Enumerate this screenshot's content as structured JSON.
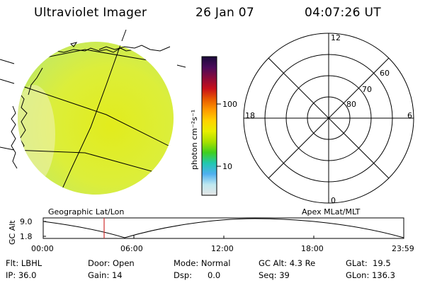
{
  "header": {
    "instrument": "Ultraviolet Imager",
    "date": "26 Jan 07",
    "time": "04:07:26 UT"
  },
  "colorbar": {
    "unit_label": "photon cm⁻²s⁻¹",
    "ticks": [
      "100",
      "10"
    ],
    "colors": [
      "#1a0a3a",
      "#4a0a5a",
      "#8a0a3a",
      "#c8101a",
      "#e85a00",
      "#ff9a00",
      "#ffd200",
      "#e8ee00",
      "#a8e000",
      "#3fcf1f",
      "#22c8b0",
      "#4fb0f0",
      "#bfe8f0",
      "#e6e6e6"
    ]
  },
  "earth_map": {
    "caption": "Geographic Lat/Lon",
    "image_fill_color": "#d7ee2a",
    "edge_color": "#98d85a"
  },
  "polar_plot": {
    "caption": "Apex  MLat/MLT",
    "mlt_labels": [
      "12",
      "6",
      "0",
      "18"
    ],
    "mlat_labels": [
      "60",
      "70",
      "80"
    ]
  },
  "altitude_plot": {
    "ylabel": "GC Alt",
    "yticks": [
      "9.0",
      "1.8"
    ],
    "xticks": [
      "00:00",
      "06:00",
      "12:00",
      "18:00",
      "23:59"
    ],
    "marker_color": "#d03030"
  },
  "footer": {
    "flt": "Flt: LBHL",
    "ip": "IP: 36.0",
    "door": "Door: Open",
    "gain": "Gain: 14",
    "mode": "Mode: Normal",
    "dsp": "Dsp:      0.0",
    "gc_alt": "GC Alt: 4.3 Re",
    "seq": "Seq: 39",
    "glat": "GLat:  19.5",
    "glon": "GLon: 136.3"
  }
}
